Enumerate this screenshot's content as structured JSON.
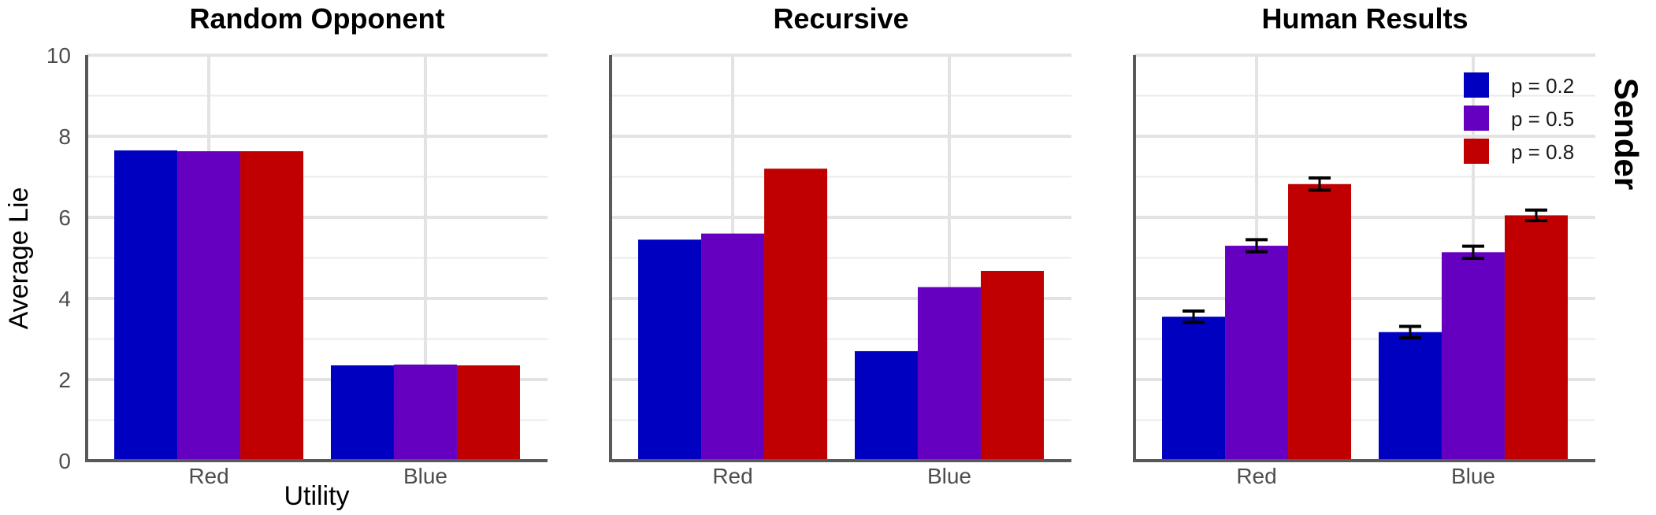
{
  "chart_data": {
    "type": "bar",
    "layout": "faceted",
    "strip_label": "Sender",
    "ylabel": "Average Lie",
    "xlabel": "Utility",
    "ylim": [
      0,
      10
    ],
    "yticks": [
      0,
      2,
      4,
      6,
      8,
      10
    ],
    "grid": true,
    "legend_position": "top-right",
    "categories": [
      "Red",
      "Blue"
    ],
    "series_styles": [
      {
        "name": "p = 0.2",
        "color": "#0000c0"
      },
      {
        "name": "p = 0.5",
        "color": "#6600c0"
      },
      {
        "name": "p = 0.8",
        "color": "#c00000"
      }
    ],
    "panels": [
      {
        "title": "Random Opponent",
        "series": [
          {
            "name": "p = 0.2",
            "values": [
              7.65,
              2.35
            ]
          },
          {
            "name": "p = 0.5",
            "values": [
              7.63,
              2.37
            ]
          },
          {
            "name": "p = 0.8",
            "values": [
              7.63,
              2.35
            ]
          }
        ]
      },
      {
        "title": "Recursive",
        "series": [
          {
            "name": "p = 0.2",
            "values": [
              5.45,
              2.7
            ]
          },
          {
            "name": "p = 0.5",
            "values": [
              5.6,
              4.28
            ]
          },
          {
            "name": "p = 0.8",
            "values": [
              7.2,
              4.68
            ]
          }
        ]
      },
      {
        "title": "Human Results",
        "series": [
          {
            "name": "p = 0.2",
            "values": [
              3.55,
              3.17
            ],
            "error": [
              0.14,
              0.14
            ]
          },
          {
            "name": "p = 0.5",
            "values": [
              5.3,
              5.14
            ],
            "error": [
              0.15,
              0.15
            ]
          },
          {
            "name": "p = 0.8",
            "values": [
              6.82,
              6.05
            ],
            "error": [
              0.15,
              0.13
            ]
          }
        ]
      }
    ]
  }
}
